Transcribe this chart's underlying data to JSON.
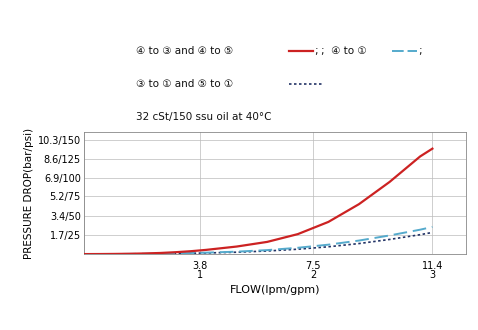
{
  "xlabel": "FLOW(lpm/gpm)",
  "ylabel": "PRESSURE DROP(bar/psi)",
  "yticks": [
    0,
    1.7,
    3.4,
    5.2,
    6.9,
    8.6,
    10.3
  ],
  "ytick_labels": [
    "",
    "1.7/25",
    "3.4/50",
    "5.2/75",
    "6.9/100",
    "8.6/125",
    "10.3/150"
  ],
  "xticks": [
    0,
    3.8,
    7.5,
    11.4
  ],
  "xtick_labels_top": [
    "",
    "3.8",
    "7.5",
    "11.4"
  ],
  "xtick_labels_bot": [
    "",
    "1",
    "2",
    "3"
  ],
  "xlim": [
    0,
    12.5
  ],
  "ylim": [
    0,
    11.0
  ],
  "line_red_x": [
    0.0,
    0.5,
    1.0,
    1.5,
    2.0,
    2.5,
    3.0,
    3.5,
    4.0,
    5.0,
    6.0,
    7.0,
    8.0,
    9.0,
    10.0,
    11.0,
    11.4
  ],
  "line_red_y": [
    0.0,
    0.005,
    0.015,
    0.03,
    0.06,
    0.1,
    0.17,
    0.26,
    0.38,
    0.68,
    1.1,
    1.8,
    2.9,
    4.5,
    6.5,
    8.8,
    9.5
  ],
  "line_cyan_x": [
    0.0,
    1.0,
    2.0,
    3.0,
    4.0,
    5.0,
    6.0,
    7.0,
    8.0,
    9.0,
    10.0,
    11.0,
    11.4
  ],
  "line_cyan_y": [
    0.0,
    0.01,
    0.03,
    0.07,
    0.13,
    0.22,
    0.36,
    0.57,
    0.85,
    1.22,
    1.68,
    2.2,
    2.45
  ],
  "line_dark_x": [
    0.0,
    1.0,
    2.0,
    3.0,
    4.0,
    5.0,
    6.0,
    7.0,
    8.0,
    9.0,
    10.0,
    11.0,
    11.4
  ],
  "line_dark_y": [
    0.0,
    0.01,
    0.02,
    0.05,
    0.1,
    0.17,
    0.28,
    0.44,
    0.66,
    0.95,
    1.32,
    1.75,
    1.95
  ],
  "color_red": "#cc2222",
  "color_cyan": "#55aacc",
  "color_dark": "#223366",
  "bg_color": "#ffffff",
  "grid_color": "#bbbbbb",
  "legend_text1a": "④ to ③ and ④ to ⑤",
  "legend_text1b": ";  ④ to ①",
  "legend_text1c": ";",
  "legend_text2a": "③ to ① and ⑤ to ①",
  "legend_text3": "32 cSt/150 ssu oil at 40°C"
}
